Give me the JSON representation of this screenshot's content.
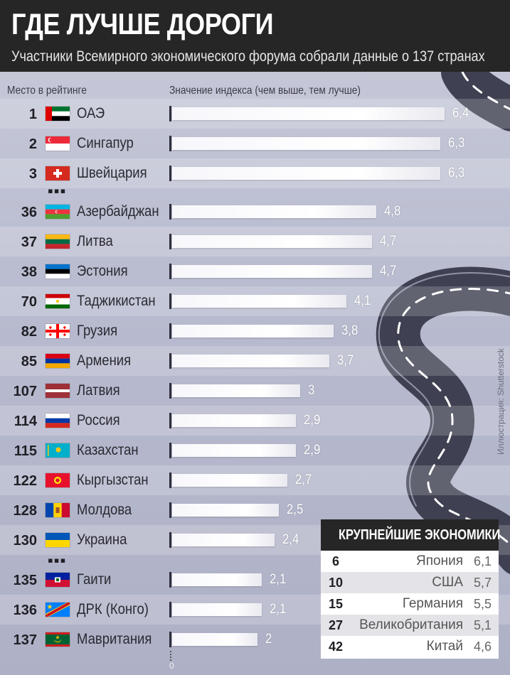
{
  "header": {
    "title": "ГДЕ ЛУЧШЕ ДОРОГИ",
    "subtitle": "Участники Всемирного экономического форума собрали данные о 137 странах"
  },
  "columns": {
    "rank": "Место в рейтинге",
    "value": "Значение индекса (чем выше, тем лучше)"
  },
  "colors": {
    "header": "#262626",
    "bar": "#ffffff",
    "road": "#3f4152"
  },
  "chart_data": {
    "type": "bar",
    "orientation": "horizontal",
    "xlim": [
      0,
      6.4
    ],
    "zero_label": "0",
    "rows": [
      {
        "rank": "1",
        "country": "ОАЭ",
        "value": 6.4,
        "label": "6,4",
        "flag": "uae"
      },
      {
        "rank": "2",
        "country": "Сингапур",
        "value": 6.3,
        "label": "6,3",
        "flag": "singapore"
      },
      {
        "rank": "3",
        "country": "Швейцария",
        "value": 6.3,
        "label": "6,3",
        "flag": "switzerland"
      },
      {
        "rank": "36",
        "country": "Азербайджан",
        "value": 4.8,
        "label": "4,8",
        "flag": "azerbaijan"
      },
      {
        "rank": "37",
        "country": "Литва",
        "value": 4.7,
        "label": "4,7",
        "flag": "lithuania"
      },
      {
        "rank": "38",
        "country": "Эстония",
        "value": 4.7,
        "label": "4,7",
        "flag": "estonia"
      },
      {
        "rank": "70",
        "country": "Таджикистан",
        "value": 4.1,
        "label": "4,1",
        "flag": "tajikistan"
      },
      {
        "rank": "82",
        "country": "Грузия",
        "value": 3.8,
        "label": "3,8",
        "flag": "georgia"
      },
      {
        "rank": "85",
        "country": "Армения",
        "value": 3.7,
        "label": "3,7",
        "flag": "armenia"
      },
      {
        "rank": "107",
        "country": "Латвия",
        "value": 3,
        "label": "3",
        "flag": "latvia"
      },
      {
        "rank": "114",
        "country": "Россия",
        "value": 2.9,
        "label": "2,9",
        "flag": "russia"
      },
      {
        "rank": "115",
        "country": "Казахстан",
        "value": 2.9,
        "label": "2,9",
        "flag": "kazakhstan"
      },
      {
        "rank": "122",
        "country": "Кыргызстан",
        "value": 2.7,
        "label": "2,7",
        "flag": "kyrgyzstan"
      },
      {
        "rank": "128",
        "country": "Молдова",
        "value": 2.5,
        "label": "2,5",
        "flag": "moldova"
      },
      {
        "rank": "130",
        "country": "Украина",
        "value": 2.4,
        "label": "2,4",
        "flag": "ukraine"
      },
      {
        "rank": "135",
        "country": "Гаити",
        "value": 2.1,
        "label": "2,1",
        "flag": "haiti"
      },
      {
        "rank": "136",
        "country": "ДРК (Конго)",
        "value": 2.1,
        "label": "2,1",
        "flag": "drc"
      },
      {
        "rank": "137",
        "country": "Мавритания",
        "value": 2,
        "label": "2",
        "flag": "mauritania"
      }
    ]
  },
  "economies": {
    "title": "КРУПНЕЙШИЕ ЭКОНОМИКИ",
    "rows": [
      {
        "rank": "6",
        "country": "Япония",
        "value": "6,1"
      },
      {
        "rank": "10",
        "country": "США",
        "value": "5,7"
      },
      {
        "rank": "15",
        "country": "Германия",
        "value": "5,5"
      },
      {
        "rank": "27",
        "country": "Великобритания",
        "value": "5,1"
      },
      {
        "rank": "42",
        "country": "Китай",
        "value": "4,6"
      }
    ]
  },
  "credit": "Иллюстрация: Shutterstock"
}
